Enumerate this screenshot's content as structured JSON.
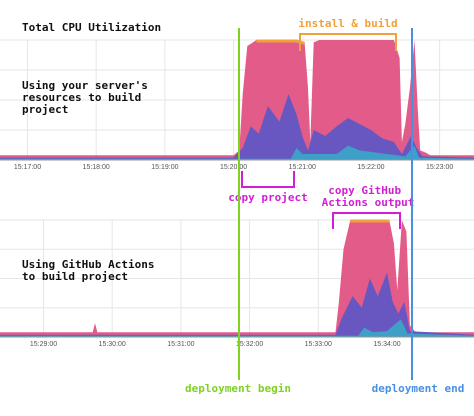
{
  "title": "Total CPU Utilization",
  "colors": {
    "pink": "#e14d7f",
    "purple": "#5a56c8",
    "teal": "#3aa8c6",
    "orange": "#f2a13a",
    "green": "#7ed321",
    "blue": "#4a90e2",
    "magenta": "#d21fd6",
    "grid": "#e6e6e6",
    "tick_text": "#555555"
  },
  "annotations": {
    "install_build": "install & build",
    "copy_project": "copy project",
    "copy_gha_line1": "copy GitHub",
    "copy_gha_line2": "Actions output",
    "deploy_begin": "deployment begin",
    "deploy_end": "deployment end"
  },
  "chart_data": [
    {
      "type": "area",
      "label_lines": [
        "Using your server's",
        "resources to build",
        "project"
      ],
      "x_ticks": [
        "15:17:00",
        "15:18:00",
        "15:19:00",
        "15:20:00",
        "15:21:00",
        "15:22:00",
        "15:23:00"
      ],
      "x_domain": [
        "15:16:36",
        "15:23:30"
      ],
      "ylim": [
        0,
        100
      ],
      "grid": true,
      "markers": [
        {
          "name": "deployment begin",
          "time": "15:20:05"
        },
        {
          "name": "deployment end",
          "time": "15:22:58"
        }
      ],
      "series": [
        {
          "color_key": "pink",
          "points": [
            [
              "15:16:36",
              4
            ],
            [
              "15:20:00",
              4
            ],
            [
              "15:20:05",
              8
            ],
            [
              "15:20:08",
              55
            ],
            [
              "15:20:12",
              95
            ],
            [
              "15:20:20",
              100
            ],
            [
              "15:20:55",
              100
            ],
            [
              "15:21:02",
              98
            ],
            [
              "15:21:05",
              60
            ],
            [
              "15:21:07",
              15
            ],
            [
              "15:21:10",
              98
            ],
            [
              "15:21:15",
              100
            ],
            [
              "15:22:20",
              100
            ],
            [
              "15:22:25",
              85
            ],
            [
              "15:22:27",
              15
            ],
            [
              "15:22:30",
              30
            ],
            [
              "15:22:34",
              60
            ],
            [
              "15:22:38",
              100
            ],
            [
              "15:22:41",
              40
            ],
            [
              "15:22:43",
              8
            ],
            [
              "15:22:48",
              6
            ],
            [
              "15:22:52",
              4
            ],
            [
              "15:23:30",
              4
            ]
          ]
        },
        {
          "color_key": "purple",
          "points": [
            [
              "15:16:36",
              2
            ],
            [
              "15:20:00",
              2
            ],
            [
              "15:20:08",
              10
            ],
            [
              "15:20:15",
              28
            ],
            [
              "15:20:22",
              22
            ],
            [
              "15:20:30",
              45
            ],
            [
              "15:20:40",
              32
            ],
            [
              "15:20:48",
              55
            ],
            [
              "15:20:55",
              38
            ],
            [
              "15:21:00",
              20
            ],
            [
              "15:21:05",
              8
            ],
            [
              "15:21:10",
              25
            ],
            [
              "15:21:20",
              20
            ],
            [
              "15:21:30",
              28
            ],
            [
              "15:21:40",
              35
            ],
            [
              "15:21:50",
              30
            ],
            [
              "15:22:00",
              25
            ],
            [
              "15:22:10",
              18
            ],
            [
              "15:22:20",
              15
            ],
            [
              "15:22:27",
              5
            ],
            [
              "15:22:35",
              20
            ],
            [
              "15:22:40",
              10
            ],
            [
              "15:22:45",
              3
            ],
            [
              "15:23:30",
              2
            ]
          ]
        },
        {
          "color_key": "teal",
          "points": [
            [
              "15:16:36",
              1
            ],
            [
              "15:20:50",
              1
            ],
            [
              "15:20:55",
              10
            ],
            [
              "15:21:00",
              5
            ],
            [
              "15:21:30",
              5
            ],
            [
              "15:21:40",
              12
            ],
            [
              "15:21:50",
              8
            ],
            [
              "15:22:30",
              3
            ],
            [
              "15:22:38",
              12
            ],
            [
              "15:22:42",
              2
            ],
            [
              "15:23:30",
              1
            ]
          ]
        }
      ]
    },
    {
      "type": "area",
      "label_lines": [
        "Using GitHub Actions",
        "to build project"
      ],
      "x_ticks": [
        "15:29:00",
        "15:30:00",
        "15:31:00",
        "15:32:00",
        "15:33:00",
        "15:34:00"
      ],
      "x_domain": [
        "15:28:22",
        "15:35:16"
      ],
      "ylim": [
        0,
        100
      ],
      "grid": true,
      "markers": [
        {
          "name": "deployment begin",
          "time": "15:31:57"
        },
        {
          "name": "deployment end",
          "time": "15:34:48"
        }
      ],
      "series": [
        {
          "color_key": "pink",
          "points": [
            [
              "15:28:22",
              4
            ],
            [
              "15:29:43",
              4
            ],
            [
              "15:29:45",
              12
            ],
            [
              "15:29:47",
              4
            ],
            [
              "15:33:15",
              4
            ],
            [
              "15:33:18",
              30
            ],
            [
              "15:33:22",
              75
            ],
            [
              "15:33:28",
              100
            ],
            [
              "15:34:02",
              100
            ],
            [
              "15:34:06",
              80
            ],
            [
              "15:34:09",
              40
            ],
            [
              "15:34:13",
              100
            ],
            [
              "15:34:17",
              90
            ],
            [
              "15:34:20",
              10
            ],
            [
              "15:34:25",
              4
            ],
            [
              "15:35:16",
              4
            ]
          ]
        },
        {
          "color_key": "purple",
          "points": [
            [
              "15:28:22",
              2
            ],
            [
              "15:33:15",
              2
            ],
            [
              "15:33:20",
              15
            ],
            [
              "15:33:30",
              35
            ],
            [
              "15:33:38",
              25
            ],
            [
              "15:33:45",
              50
            ],
            [
              "15:33:52",
              35
            ],
            [
              "15:34:00",
              55
            ],
            [
              "15:34:05",
              30
            ],
            [
              "15:34:10",
              20
            ],
            [
              "15:34:15",
              30
            ],
            [
              "15:34:20",
              5
            ],
            [
              "15:35:16",
              2
            ]
          ]
        },
        {
          "color_key": "teal",
          "points": [
            [
              "15:28:22",
              1
            ],
            [
              "15:33:35",
              1
            ],
            [
              "15:33:40",
              8
            ],
            [
              "15:33:48",
              4
            ],
            [
              "15:34:00",
              5
            ],
            [
              "15:34:12",
              15
            ],
            [
              "15:34:18",
              3
            ],
            [
              "15:35:16",
              1
            ]
          ]
        }
      ]
    }
  ]
}
